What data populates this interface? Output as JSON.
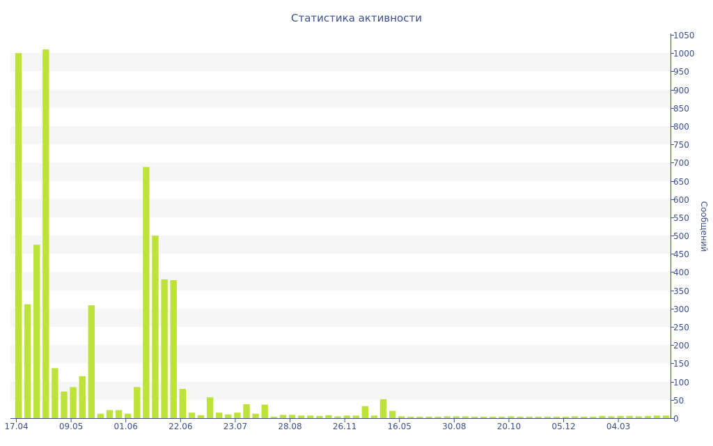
{
  "chart_data": {
    "type": "bar",
    "title": "Статистика активности",
    "ylabel": "Сообщений",
    "xlabel": "",
    "ylim": [
      0,
      1050
    ],
    "y_ticks": [
      0,
      50,
      100,
      150,
      200,
      250,
      300,
      350,
      400,
      450,
      500,
      550,
      600,
      650,
      700,
      750,
      800,
      850,
      900,
      950,
      1000,
      1050
    ],
    "y_axis_position": "right",
    "grid": "horizontal alternating bands",
    "x_tick_labels": [
      {
        "index": 0,
        "label": "17.04"
      },
      {
        "index": 6,
        "label": "09.05"
      },
      {
        "index": 12,
        "label": "01.06"
      },
      {
        "index": 18,
        "label": "22.06"
      },
      {
        "index": 24,
        "label": "23.07"
      },
      {
        "index": 30,
        "label": "28.08"
      },
      {
        "index": 36,
        "label": "26.11"
      },
      {
        "index": 42,
        "label": "16.05"
      },
      {
        "index": 48,
        "label": "30.08"
      },
      {
        "index": 54,
        "label": "20.10"
      },
      {
        "index": 60,
        "label": "05.12"
      },
      {
        "index": 66,
        "label": "04.03"
      }
    ],
    "values": [
      1000,
      312,
      475,
      1010,
      137,
      73,
      85,
      115,
      309,
      12,
      22,
      22,
      12,
      85,
      688,
      500,
      380,
      378,
      80,
      15,
      8,
      57,
      15,
      10,
      15,
      38,
      12,
      37,
      4,
      9,
      9,
      7,
      7,
      6,
      8,
      5,
      7,
      7,
      33,
      7,
      52,
      20,
      5,
      4,
      4,
      4,
      4,
      5,
      5,
      5,
      4,
      4,
      4,
      4,
      5,
      4,
      4,
      4,
      4,
      4,
      4,
      5,
      4,
      4,
      6,
      5,
      6,
      6,
      5,
      6,
      7,
      7
    ],
    "colors": {
      "bar": "#bde23a",
      "text": "#3b4f8f",
      "axis": "#3b4f8f",
      "band": "#f6f6f6",
      "background": "#ffffff"
    }
  }
}
